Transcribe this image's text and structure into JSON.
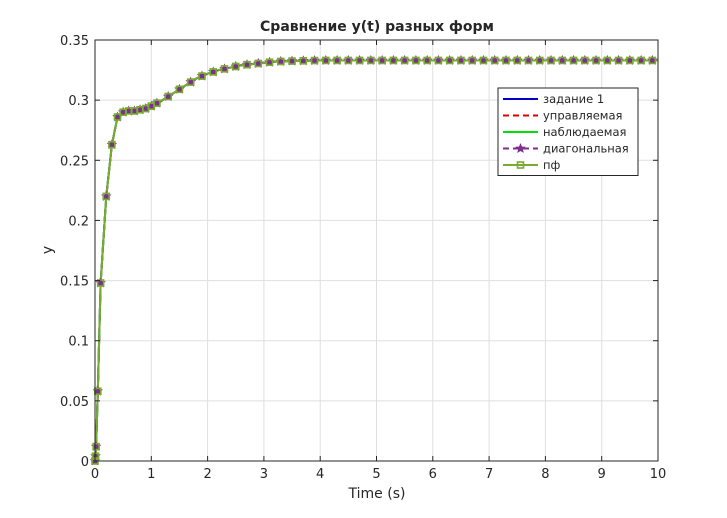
{
  "chart_data": {
    "type": "line",
    "title": "Сравнение y(t) разных форм",
    "xlabel": "Time (s)",
    "ylabel": "y",
    "xlim": [
      0,
      10
    ],
    "ylim": [
      0,
      0.35
    ],
    "xticks": [
      0,
      1,
      2,
      3,
      4,
      5,
      6,
      7,
      8,
      9,
      10
    ],
    "xtick_labels": [
      "0",
      "1",
      "2",
      "3",
      "4",
      "5",
      "6",
      "7",
      "8",
      "9",
      "10"
    ],
    "yticks": [
      0,
      0.05,
      0.1,
      0.15,
      0.2,
      0.25,
      0.3,
      0.35
    ],
    "ytick_labels": [
      "0",
      "0.05",
      "0.1",
      "0.15",
      "0.2",
      "0.25",
      "0.3",
      "0.35"
    ],
    "grid": true,
    "legend_position": "top-right",
    "x": [
      0,
      0.01,
      0.02,
      0.05,
      0.1,
      0.2,
      0.3,
      0.4,
      0.5,
      0.6,
      0.7,
      0.8,
      0.9,
      1.0,
      1.2,
      1.4,
      1.6,
      1.8,
      2.0,
      2.2,
      2.4,
      2.6,
      2.8,
      3.0,
      3.2,
      3.5,
      4.0,
      4.5,
      5.0,
      6.0,
      7.0,
      8.0,
      9.0,
      10.0
    ],
    "series": [
      {
        "name": "задание 1",
        "color": "#0000c8",
        "style": "solid",
        "marker": "none",
        "values": [
          0,
          0.004,
          0.012,
          0.058,
          0.148,
          0.22,
          0.263,
          0.286,
          0.29,
          0.291,
          0.291,
          0.292,
          0.293,
          0.295,
          0.3,
          0.306,
          0.312,
          0.318,
          0.322,
          0.325,
          0.327,
          0.329,
          0.33,
          0.331,
          0.332,
          0.3325,
          0.333,
          0.333,
          0.333,
          0.333,
          0.333,
          0.333,
          0.333,
          0.333
        ]
      },
      {
        "name": "управляемая",
        "color": "#e00000",
        "style": "dashed",
        "marker": "none",
        "values": [
          0,
          0.004,
          0.012,
          0.058,
          0.148,
          0.22,
          0.263,
          0.286,
          0.29,
          0.291,
          0.291,
          0.292,
          0.293,
          0.295,
          0.3,
          0.306,
          0.312,
          0.318,
          0.322,
          0.325,
          0.327,
          0.329,
          0.33,
          0.331,
          0.332,
          0.3325,
          0.333,
          0.333,
          0.333,
          0.333,
          0.333,
          0.333,
          0.333,
          0.333
        ]
      },
      {
        "name": "наблюдаемая",
        "color": "#00e000",
        "style": "solid",
        "marker": "none",
        "values": [
          0,
          0.004,
          0.012,
          0.058,
          0.148,
          0.22,
          0.263,
          0.286,
          0.29,
          0.291,
          0.291,
          0.292,
          0.293,
          0.295,
          0.3,
          0.306,
          0.312,
          0.318,
          0.322,
          0.325,
          0.327,
          0.329,
          0.33,
          0.331,
          0.332,
          0.3325,
          0.333,
          0.333,
          0.333,
          0.333,
          0.333,
          0.333,
          0.333,
          0.333
        ]
      },
      {
        "name": "диагональная",
        "color": "#7e2f8e",
        "style": "dashed",
        "marker": "star",
        "values": [
          0,
          0.004,
          0.012,
          0.058,
          0.148,
          0.22,
          0.263,
          0.286,
          0.29,
          0.291,
          0.291,
          0.292,
          0.293,
          0.295,
          0.3,
          0.306,
          0.312,
          0.318,
          0.322,
          0.325,
          0.327,
          0.329,
          0.33,
          0.331,
          0.332,
          0.3325,
          0.333,
          0.333,
          0.333,
          0.333,
          0.333,
          0.333,
          0.333,
          0.333
        ]
      },
      {
        "name": "пф",
        "color": "#77ac30",
        "style": "solid",
        "marker": "square",
        "values": [
          0,
          0.004,
          0.012,
          0.058,
          0.148,
          0.22,
          0.263,
          0.286,
          0.29,
          0.291,
          0.291,
          0.292,
          0.293,
          0.295,
          0.3,
          0.306,
          0.312,
          0.318,
          0.322,
          0.325,
          0.327,
          0.329,
          0.33,
          0.331,
          0.332,
          0.3325,
          0.333,
          0.333,
          0.333,
          0.333,
          0.333,
          0.333,
          0.333,
          0.333
        ]
      }
    ]
  }
}
